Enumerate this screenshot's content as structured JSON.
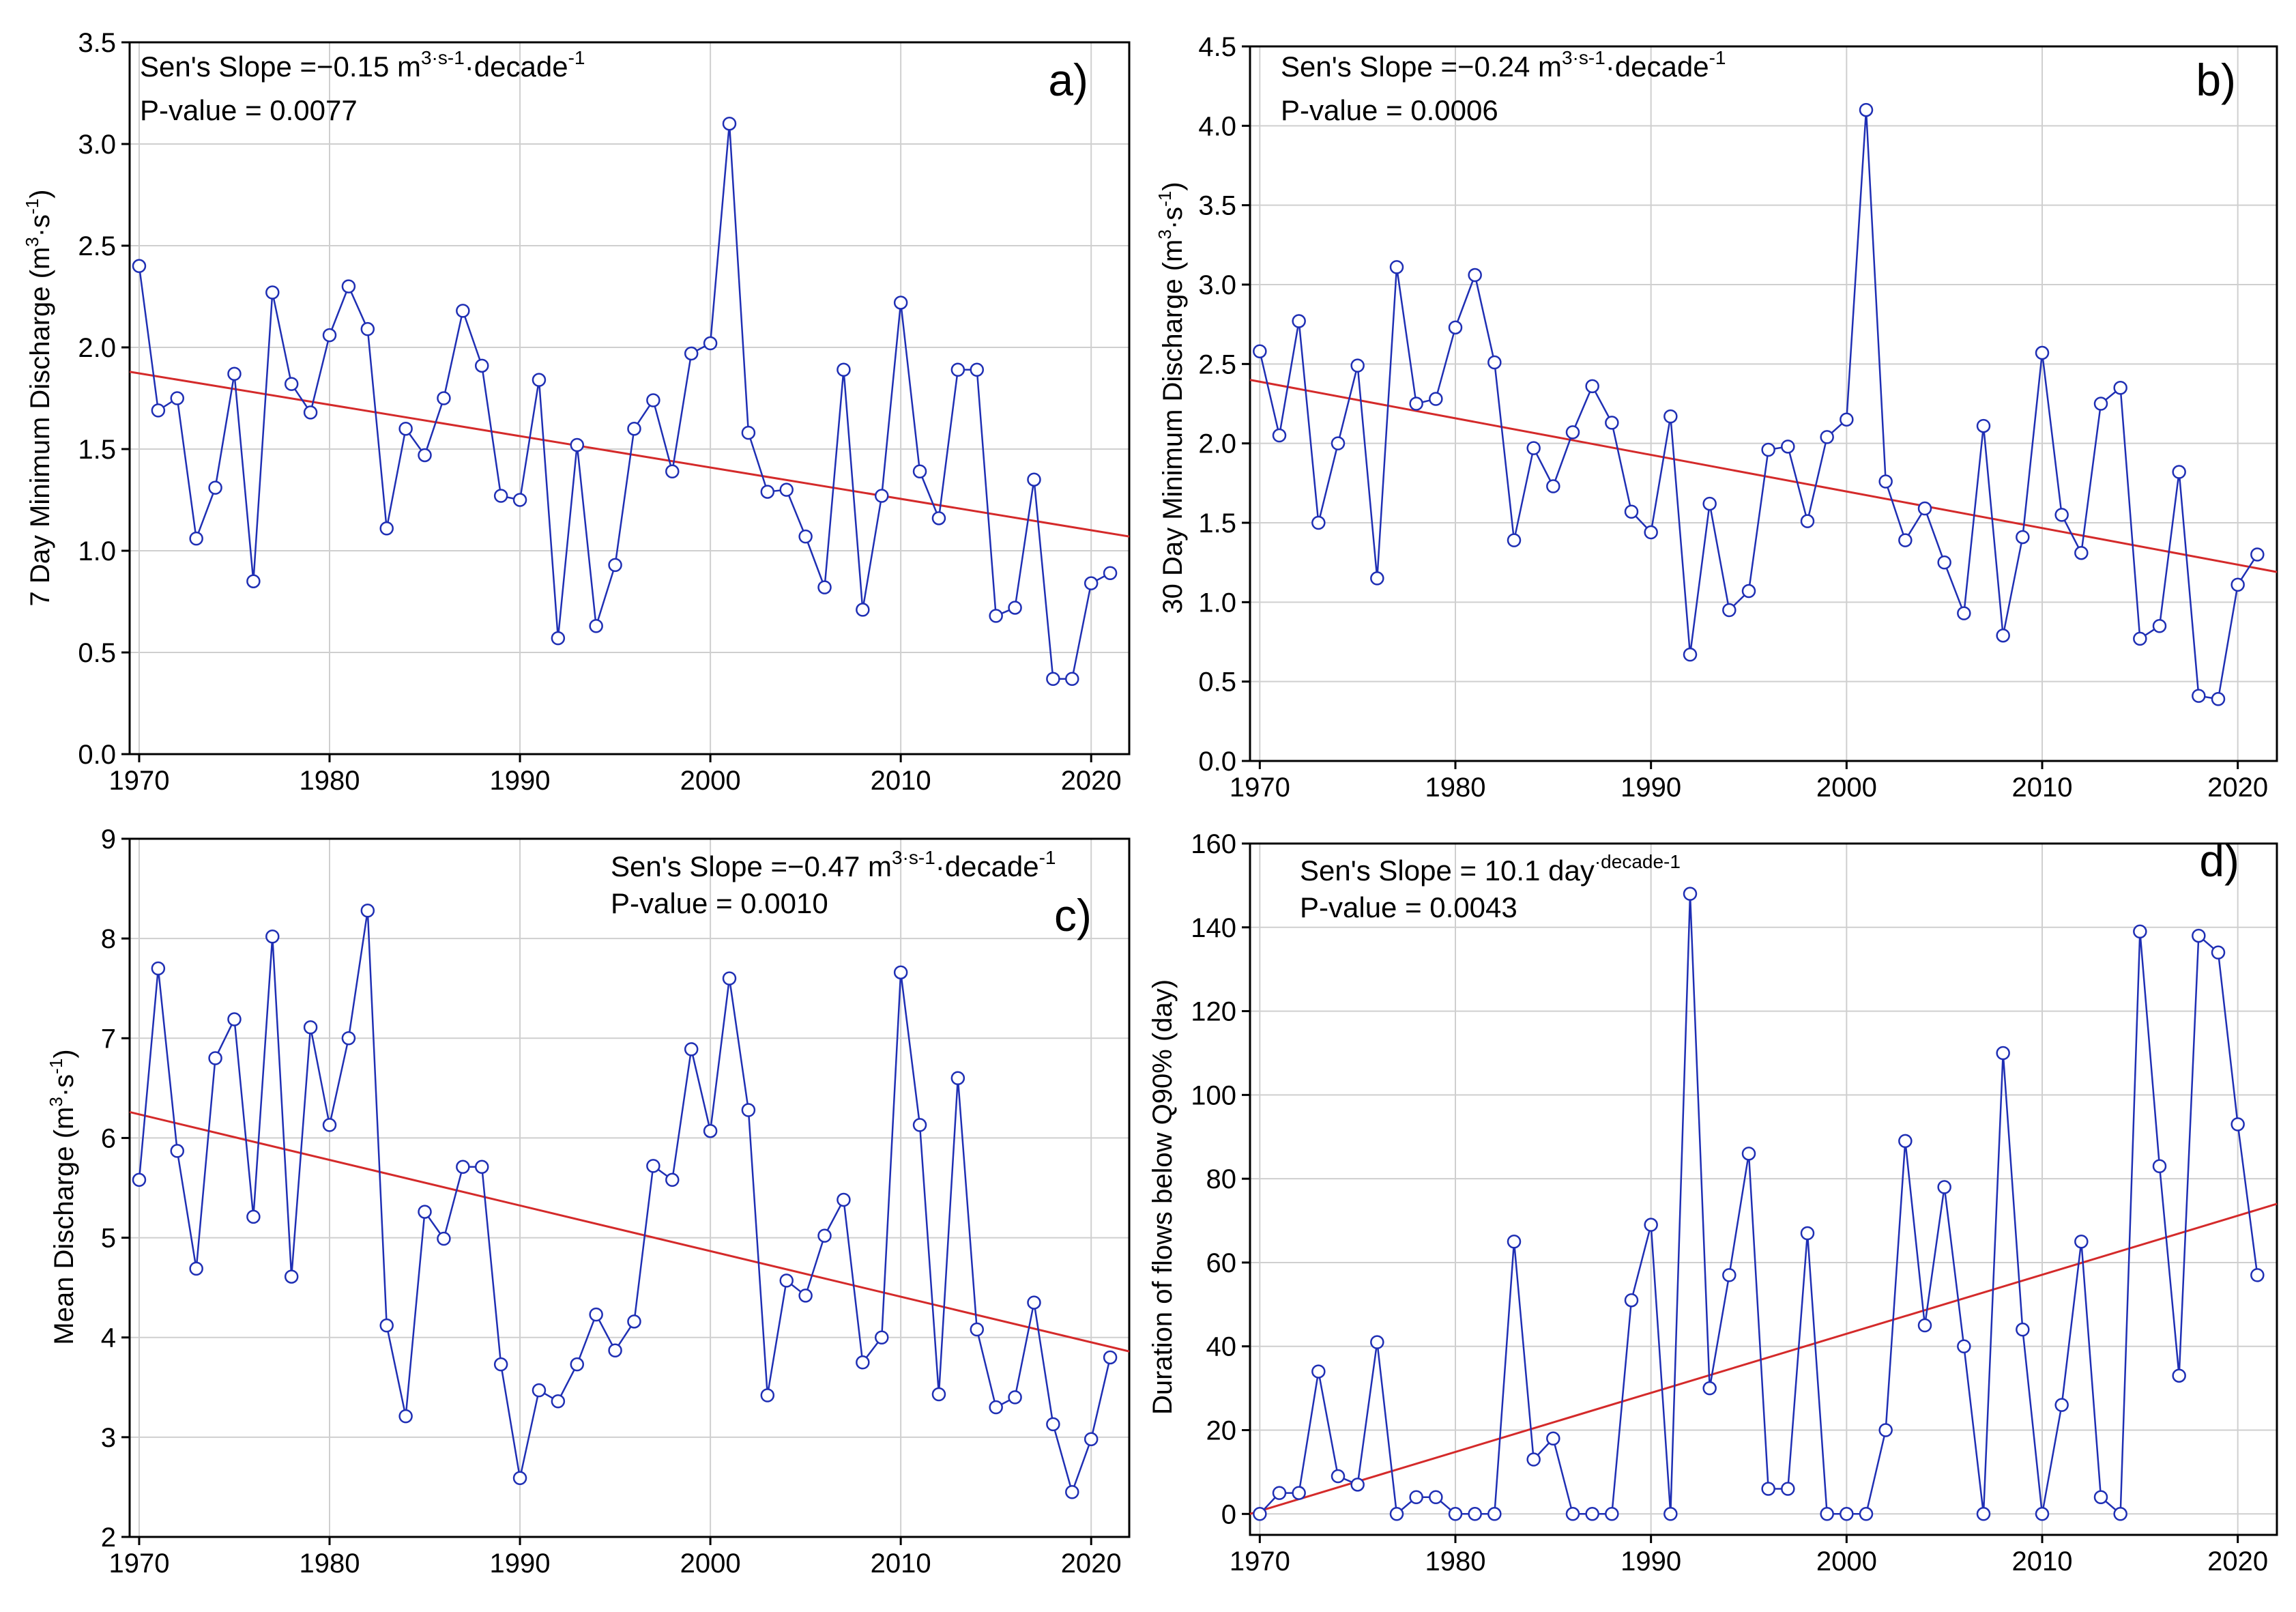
{
  "colors": {
    "series": "#1f2fb4",
    "trend": "#d42a2a",
    "grid": "#cfcfcf",
    "axis": "#000000"
  },
  "chart_data": [
    {
      "id": "a",
      "type": "line",
      "panel_letter": "a)",
      "slope_prefix": "Sen's Slope =−0.15 m",
      "slope_unit": "3·s-1·decade-1",
      "p_value": "P-value = 0.0077",
      "ylabel": "7 Day Minimum Discharge (m3·s-1)",
      "xlim": [
        1969.5,
        2022
      ],
      "ylim": [
        0,
        3.5
      ],
      "x_ticks": [
        1970,
        1980,
        1990,
        2000,
        2010,
        2020
      ],
      "x_tick_labels": [
        "1970",
        "1980",
        "1990",
        "2000",
        "2010",
        "2020"
      ],
      "y_ticks": [
        0,
        0.5,
        1.0,
        1.5,
        2.0,
        2.5,
        3.0,
        3.5
      ],
      "y_tick_labels": [
        "0.0",
        "0.5",
        "1.0",
        "1.5",
        "2.0",
        "2.5",
        "3.0",
        "3.5"
      ],
      "x": [
        1970,
        1971,
        1972,
        1973,
        1974,
        1975,
        1976,
        1977,
        1978,
        1979,
        1980,
        1981,
        1982,
        1983,
        1984,
        1985,
        1986,
        1987,
        1988,
        1989,
        1990,
        1991,
        1992,
        1993,
        1994,
        1995,
        1996,
        1997,
        1998,
        1999,
        2000,
        2001,
        2002,
        2003,
        2004,
        2005,
        2006,
        2007,
        2008,
        2009,
        2010,
        2011,
        2012,
        2013,
        2014,
        2015,
        2016,
        2017,
        2018,
        2019,
        2020,
        2021
      ],
      "values": [
        2.4,
        1.69,
        1.75,
        1.06,
        1.31,
        1.87,
        0.85,
        2.27,
        1.82,
        1.68,
        2.06,
        2.3,
        2.09,
        1.11,
        1.6,
        1.47,
        1.75,
        2.18,
        1.91,
        1.27,
        1.25,
        1.84,
        0.57,
        1.52,
        0.63,
        0.93,
        1.6,
        1.74,
        1.39,
        1.97,
        2.02,
        3.1,
        1.58,
        1.29,
        1.3,
        1.07,
        0.82,
        1.89,
        0.71,
        1.27,
        2.22,
        1.39,
        1.16,
        1.89,
        1.89,
        0.68,
        0.72,
        1.35,
        0.37,
        0.37,
        0.84,
        0.89
      ],
      "trend": {
        "x": [
          1969.5,
          2022
        ],
        "y": [
          1.88,
          1.07
        ]
      }
    },
    {
      "id": "b",
      "type": "line",
      "panel_letter": "b)",
      "slope_prefix": "Sen's Slope =−0.24 m",
      "slope_unit": "3·s-1·decade-1",
      "p_value": "P-value = 0.0006",
      "ylabel": "30 Day Minimum Discharge (m3·s-1)",
      "xlim": [
        1969.5,
        2022
      ],
      "ylim": [
        0,
        4.5
      ],
      "x_ticks": [
        1970,
        1980,
        1990,
        2000,
        2010,
        2020
      ],
      "x_tick_labels": [
        "1970",
        "1980",
        "1990",
        "2000",
        "2010",
        "2020"
      ],
      "y_ticks": [
        0,
        0.5,
        1.0,
        1.5,
        2.0,
        2.5,
        3.0,
        3.5,
        4.0,
        4.5
      ],
      "y_tick_labels": [
        "0.0",
        "0.5",
        "1.0",
        "1.5",
        "2.0",
        "2.5",
        "3.0",
        "3.5",
        "4.0",
        "4.5"
      ],
      "x": [
        1970,
        1971,
        1972,
        1973,
        1974,
        1975,
        1976,
        1977,
        1978,
        1979,
        1980,
        1981,
        1982,
        1983,
        1984,
        1985,
        1986,
        1987,
        1988,
        1989,
        1990,
        1991,
        1992,
        1993,
        1994,
        1995,
        1996,
        1997,
        1998,
        1999,
        2000,
        2001,
        2002,
        2003,
        2004,
        2005,
        2006,
        2007,
        2008,
        2009,
        2010,
        2011,
        2012,
        2013,
        2014,
        2015,
        2016,
        2017,
        2018,
        2019,
        2020,
        2021
      ],
      "values": [
        2.58,
        2.05,
        2.77,
        1.5,
        2.0,
        2.49,
        1.15,
        3.11,
        2.25,
        2.28,
        2.73,
        3.06,
        2.51,
        1.39,
        1.97,
        1.73,
        2.07,
        2.36,
        2.13,
        1.57,
        1.44,
        2.17,
        0.67,
        1.62,
        0.95,
        1.07,
        1.96,
        1.98,
        1.51,
        2.04,
        2.15,
        4.1,
        1.76,
        1.39,
        1.59,
        1.25,
        0.93,
        2.11,
        0.79,
        1.41,
        2.57,
        1.55,
        1.31,
        2.25,
        2.35,
        0.77,
        0.85,
        1.82,
        0.41,
        0.39,
        1.11,
        1.3
      ],
      "trend": {
        "x": [
          1969.5,
          2022
        ],
        "y": [
          2.4,
          1.19
        ]
      }
    },
    {
      "id": "c",
      "type": "line",
      "panel_letter": "c)",
      "slope_prefix": "Sen's Slope =−0.47 m",
      "slope_unit": "3·s-1·decade-1",
      "p_value": "P-value = 0.0010",
      "ylabel": "Mean Discharge (m3·s-1)",
      "xlim": [
        1969.5,
        2022
      ],
      "ylim": [
        2,
        9
      ],
      "x_ticks": [
        1970,
        1980,
        1990,
        2000,
        2010,
        2020
      ],
      "x_tick_labels": [
        "1970",
        "1980",
        "1990",
        "2000",
        "2010",
        "2020"
      ],
      "y_ticks": [
        2,
        3,
        4,
        5,
        6,
        7,
        8,
        9
      ],
      "y_tick_labels": [
        "2",
        "3",
        "4",
        "5",
        "6",
        "7",
        "8",
        "9"
      ],
      "x": [
        1970,
        1971,
        1972,
        1973,
        1974,
        1975,
        1976,
        1977,
        1978,
        1979,
        1980,
        1981,
        1982,
        1983,
        1984,
        1985,
        1986,
        1987,
        1988,
        1989,
        1990,
        1991,
        1992,
        1993,
        1994,
        1995,
        1996,
        1997,
        1998,
        1999,
        2000,
        2001,
        2002,
        2003,
        2004,
        2005,
        2006,
        2007,
        2008,
        2009,
        2010,
        2011,
        2012,
        2013,
        2014,
        2015,
        2016,
        2017,
        2018,
        2019,
        2020,
        2021
      ],
      "values": [
        5.58,
        7.7,
        5.87,
        4.69,
        6.8,
        7.19,
        5.21,
        8.02,
        4.61,
        7.11,
        6.13,
        7.0,
        8.28,
        4.12,
        3.21,
        5.26,
        4.99,
        5.71,
        5.71,
        3.73,
        2.59,
        3.47,
        3.36,
        3.73,
        4.23,
        3.87,
        4.16,
        5.72,
        5.58,
        6.89,
        6.07,
        7.6,
        6.28,
        3.42,
        4.57,
        4.42,
        5.02,
        5.38,
        3.75,
        4.0,
        7.66,
        6.13,
        3.43,
        6.6,
        4.08,
        3.3,
        3.4,
        4.35,
        3.13,
        2.45,
        2.98,
        3.8
      ],
      "trend": {
        "x": [
          1969.5,
          2022
        ],
        "y": [
          6.26,
          3.86
        ]
      }
    },
    {
      "id": "d",
      "type": "line",
      "panel_letter": "d)",
      "slope_prefix": "Sen's Slope = 10.1 day",
      "slope_unit": "·decade-1",
      "p_value": "P-value = 0.0043",
      "ylabel": "Duration of flows below Q90% (day)",
      "xlim": [
        1969.5,
        2022
      ],
      "ylim": [
        -5,
        160
      ],
      "x_ticks": [
        1970,
        1980,
        1990,
        2000,
        2010,
        2020
      ],
      "x_tick_labels": [
        "1970",
        "1980",
        "1990",
        "2000",
        "2010",
        "2020"
      ],
      "y_ticks": [
        0,
        20,
        40,
        60,
        80,
        100,
        120,
        140,
        160
      ],
      "y_tick_labels": [
        "0",
        "20",
        "40",
        "60",
        "80",
        "100",
        "120",
        "140",
        "160"
      ],
      "x": [
        1970,
        1971,
        1972,
        1973,
        1974,
        1975,
        1976,
        1977,
        1978,
        1979,
        1980,
        1981,
        1982,
        1983,
        1984,
        1985,
        1986,
        1987,
        1988,
        1989,
        1990,
        1991,
        1992,
        1993,
        1994,
        1995,
        1996,
        1997,
        1998,
        1999,
        2000,
        2001,
        2002,
        2003,
        2004,
        2005,
        2006,
        2007,
        2008,
        2009,
        2010,
        2011,
        2012,
        2013,
        2014,
        2015,
        2016,
        2017,
        2018,
        2019,
        2020,
        2021
      ],
      "values": [
        0,
        5,
        5,
        34,
        9,
        7,
        41,
        0,
        4,
        4,
        0,
        0,
        0,
        65,
        13,
        18,
        0,
        0,
        0,
        51,
        69,
        0,
        148,
        30,
        57,
        86,
        6,
        6,
        67,
        0,
        0,
        0,
        20,
        89,
        45,
        78,
        40,
        0,
        110,
        44,
        0,
        26,
        65,
        4,
        0,
        139,
        83,
        33,
        138,
        134,
        93,
        57
      ],
      "trend": {
        "x": [
          1969.5,
          2022
        ],
        "y": [
          0,
          74
        ]
      }
    }
  ]
}
